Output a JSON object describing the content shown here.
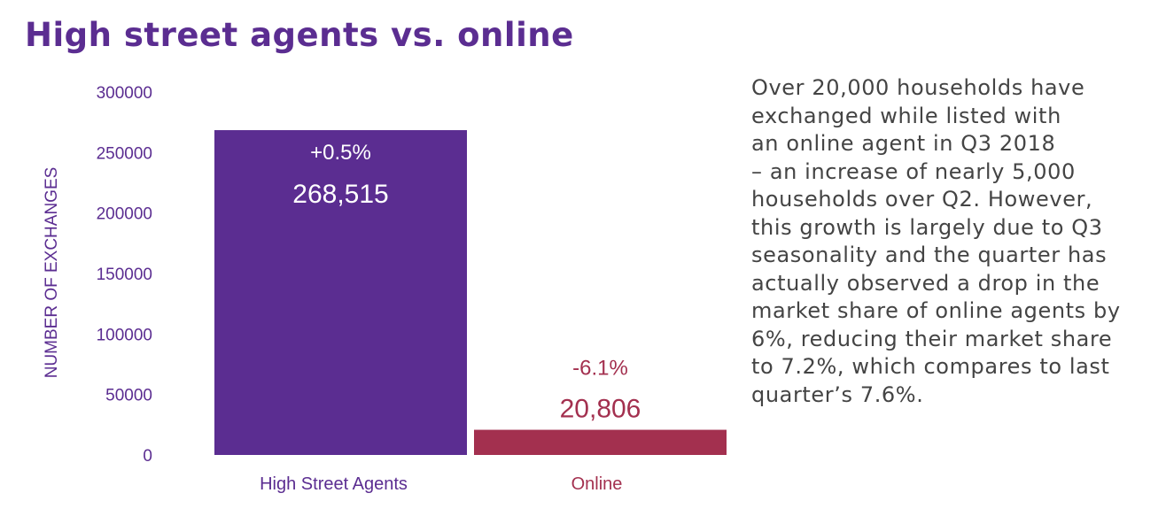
{
  "title": "High street agents vs. online",
  "description": "Over 20,000 households have\nexchanged while listed with\nan online agent in Q3 2018\n– an increase of nearly 5,000\nhouseholds over Q2. However,\nthis growth is largely due to Q3\nseasonality and the quarter has\nactually observed a drop in the\nmarket share of online agents by\n6%, reducing their market share\nto 7.2%, which compares to last\nquarter’s 7.6%.",
  "colors": {
    "title": "#5b2d91",
    "axis": "#5b2d91",
    "text": "#444444"
  },
  "chart_data": {
    "type": "bar",
    "categories": [
      "High Street Agents",
      "Online"
    ],
    "values": [
      268515,
      20806
    ],
    "value_labels": [
      "268,515",
      "20,806"
    ],
    "change_labels": [
      "+0.5%",
      "-6.1%"
    ],
    "bar_colors": [
      "#5b2d91",
      "#a3304f"
    ],
    "ylabel": "NUMBER OF EXCHANGES",
    "yticks": [
      0,
      50000,
      100000,
      150000,
      200000,
      250000,
      300000
    ],
    "ylim": [
      0,
      300000
    ],
    "grid": false,
    "legend": "none"
  }
}
